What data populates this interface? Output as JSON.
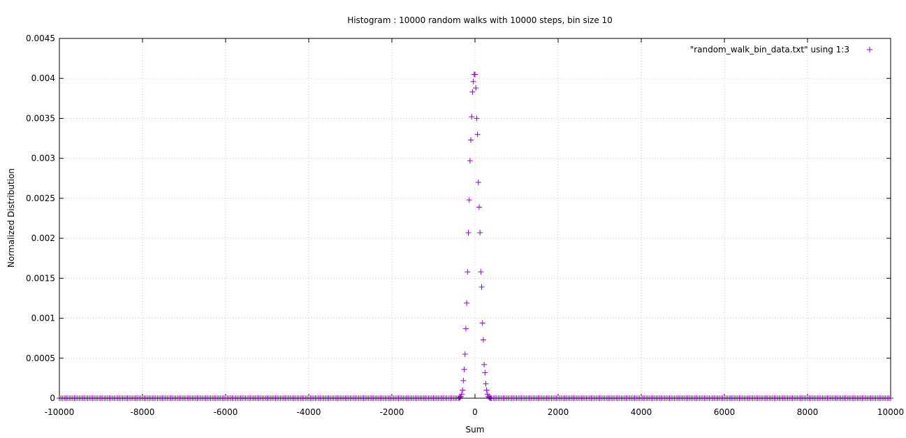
{
  "chart_data": {
    "type": "scatter",
    "title": "Histogram : 10000 random walks with 10000 steps, bin size 10",
    "xlabel": "Sum",
    "ylabel": "Normalized Distribution",
    "xlim": [
      -10000,
      10000
    ],
    "ylim": [
      0,
      0.0045
    ],
    "x_ticks": [
      -10000,
      -8000,
      -6000,
      -4000,
      -2000,
      0,
      2000,
      4000,
      6000,
      8000,
      10000
    ],
    "x_tick_labels": [
      "-10000",
      "-8000",
      "-6000",
      "-4000",
      "-2000",
      "0",
      "2000",
      "4000",
      "6000",
      "8000",
      "10000"
    ],
    "y_ticks": [
      0,
      0.0005,
      0.001,
      0.0015,
      0.002,
      0.0025,
      0.003,
      0.0035,
      0.004,
      0.0045
    ],
    "y_tick_labels": [
      "0",
      "0.0005",
      "0.001",
      "0.0015",
      "0.002",
      "0.0025",
      "0.003",
      "0.0035",
      "0.004",
      "0.0045"
    ],
    "grid": true,
    "legend_position": "top-right",
    "marker": "plus",
    "series": [
      {
        "name": "\"random_walk_bin_data.txt\" using 1:3",
        "color": "#9400d3",
        "x": [
          -400,
          -380,
          -360,
          -340,
          -320,
          -300,
          -280,
          -260,
          -240,
          -220,
          -200,
          -180,
          -160,
          -140,
          -120,
          -100,
          -80,
          -60,
          -40,
          -20,
          0,
          20,
          40,
          60,
          80,
          100,
          120,
          140,
          160,
          180,
          200,
          220,
          240,
          260,
          280,
          300,
          320,
          340,
          360,
          380,
          400
        ],
        "y": [
          0.0,
          3e-06,
          8e-06,
          2.1e-05,
          5e-05,
          0.0001,
          0.00022,
          0.00036,
          0.00055,
          0.00087,
          0.00119,
          0.00158,
          0.00207,
          0.00248,
          0.00297,
          0.00323,
          0.00352,
          0.00383,
          0.00396,
          0.00405,
          0.00405,
          0.00388,
          0.0035,
          0.0033,
          0.0027,
          0.00239,
          0.00207,
          0.00158,
          0.00139,
          0.00094,
          0.00073,
          0.00042,
          0.00032,
          0.00018,
          0.0001,
          5e-05,
          2e-05,
          8e-06,
          3e-06,
          1e-06,
          0.0
        ],
        "baseline_step": 40
      }
    ]
  }
}
